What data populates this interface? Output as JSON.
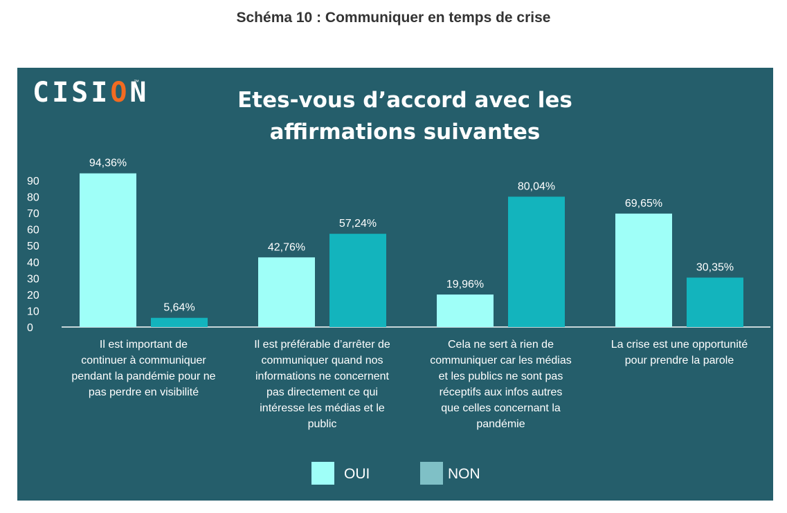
{
  "page_heading": "Schéma 10 : Communiquer en temps de crise",
  "logo": {
    "text_main": "CISI",
    "text_accent": "O",
    "text_end": "N",
    "icon": "cision-logo"
  },
  "colors": {
    "panel": "#255e6b",
    "oui": "#9ffff8",
    "non": "#13b4bd",
    "legend_non": "#7fc0c6",
    "text": "#ffffff",
    "logo_accent": "#f26b21"
  },
  "chart_data": {
    "type": "bar",
    "title_lines": [
      "Etes-vous d’accord avec les",
      "affirmations suivantes"
    ],
    "categories": [
      [
        "Il est important de",
        "continuer à communiquer",
        "pendant la pandémie pour ne",
        "pas perdre en visibilité"
      ],
      [
        "Il est préférable d’arrêter de",
        "communiquer quand nos",
        "informations ne concernent",
        "pas directement ce qui",
        "intéresse les médias et le",
        "public"
      ],
      [
        "Cela ne sert à rien de",
        "communiquer car les médias",
        "et les publics ne sont pas",
        "réceptifs aux infos autres",
        "que celles concernant la",
        "pandémie"
      ],
      [
        "La crise est une opportunité",
        "pour prendre la parole"
      ]
    ],
    "series": [
      {
        "name": "OUI",
        "values": [
          94.36,
          42.76,
          19.96,
          69.65
        ],
        "labels": [
          "94,36%",
          "42,76%",
          "19,96%",
          "69,65%"
        ]
      },
      {
        "name": "NON",
        "values": [
          5.64,
          57.24,
          80.04,
          30.35
        ],
        "labels": [
          "5,64%",
          "57,24%",
          "80,04%",
          "30,35%"
        ]
      }
    ],
    "yticks": [
      "0",
      "10",
      "20",
      "30",
      "40",
      "50",
      "60",
      "70",
      "80",
      "90"
    ],
    "ylim": [
      0,
      90
    ],
    "grid": false,
    "legend_position": "bottom-center"
  }
}
